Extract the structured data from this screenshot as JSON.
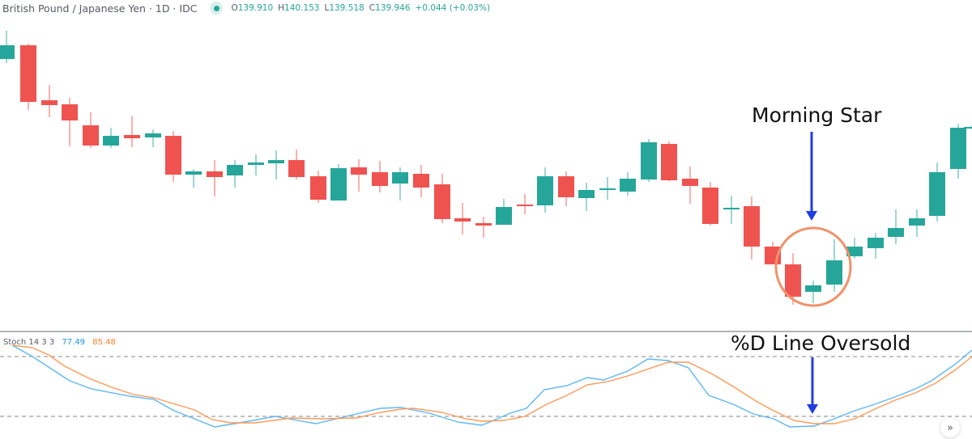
{
  "header": {
    "title": "British Pound / Japanese Yen · 1D · IDC",
    "status_icon": "market-open-dot",
    "ohlc": {
      "o_label": "O",
      "o": "139.910",
      "h_label": "H",
      "h": "140.153",
      "l_label": "L",
      "l": "139.518",
      "c_label": "C",
      "c": "139.946",
      "change": "+0.044 (+0.03%)"
    }
  },
  "indicator": {
    "name": "Stoch 14 3 3",
    "k_value": "77.49",
    "d_value": "85.48"
  },
  "annotations": {
    "morning_star": "Morning Star",
    "oversold": "%D Line Oversold"
  },
  "controls": {
    "scroll_to_realtime_icon": "»"
  },
  "colors": {
    "up": "#26a69a",
    "down": "#ef5350",
    "k_line": "#5eb7f5",
    "d_line": "#ff9a57",
    "arrow": "#1f3ee0",
    "circle": "#f0926a",
    "grid_dash": "#9e9e9e"
  },
  "chart_data": [
    {
      "type": "candlestick",
      "title": "British Pound / Japanese Yen · 1D · IDC",
      "note": "Candle values in screen-pixel units (y grows downward); no price axis visible",
      "candles": [
        {
          "x": 8,
          "open": 73,
          "close": 56,
          "high": 38,
          "low": 78,
          "dir": "up"
        },
        {
          "x": 35,
          "open": 56,
          "close": 126,
          "high": 54,
          "low": 136,
          "dir": "down"
        },
        {
          "x": 61,
          "open": 124,
          "close": 130,
          "high": 105,
          "low": 145,
          "dir": "down"
        },
        {
          "x": 86,
          "open": 129,
          "close": 149,
          "high": 121,
          "low": 181,
          "dir": "down"
        },
        {
          "x": 112,
          "open": 155,
          "close": 180,
          "high": 139,
          "low": 183,
          "dir": "down"
        },
        {
          "x": 137,
          "open": 180,
          "close": 168,
          "high": 158,
          "low": 183,
          "dir": "up"
        },
        {
          "x": 163,
          "open": 167,
          "close": 171,
          "high": 143,
          "low": 182,
          "dir": "down"
        },
        {
          "x": 189,
          "open": 170,
          "close": 165,
          "high": 160,
          "low": 182,
          "dir": "up"
        },
        {
          "x": 214,
          "open": 168,
          "close": 216,
          "high": 162,
          "low": 225,
          "dir": "down"
        },
        {
          "x": 239,
          "open": 216,
          "close": 212,
          "high": 209,
          "low": 232,
          "dir": "up"
        },
        {
          "x": 265,
          "open": 212,
          "close": 219,
          "high": 198,
          "low": 243,
          "dir": "down"
        },
        {
          "x": 290,
          "open": 217,
          "close": 204,
          "high": 198,
          "low": 232,
          "dir": "up"
        },
        {
          "x": 316,
          "open": 204,
          "close": 201,
          "high": 191,
          "low": 217,
          "dir": "up"
        },
        {
          "x": 341,
          "open": 202,
          "close": 198,
          "high": 186,
          "low": 222,
          "dir": "up"
        },
        {
          "x": 366,
          "open": 198,
          "close": 219,
          "high": 185,
          "low": 222,
          "dir": "down"
        },
        {
          "x": 393,
          "open": 218,
          "close": 247,
          "high": 211,
          "low": 251,
          "dir": "down"
        },
        {
          "x": 418,
          "open": 248,
          "close": 208,
          "high": 203,
          "low": 248,
          "dir": "up"
        },
        {
          "x": 443,
          "open": 207,
          "close": 216,
          "high": 197,
          "low": 237,
          "dir": "down"
        },
        {
          "x": 469,
          "open": 213,
          "close": 230,
          "high": 199,
          "low": 238,
          "dir": "down"
        },
        {
          "x": 494,
          "open": 227,
          "close": 213,
          "high": 207,
          "low": 248,
          "dir": "up"
        },
        {
          "x": 520,
          "open": 215,
          "close": 232,
          "high": 204,
          "low": 244,
          "dir": "down"
        },
        {
          "x": 546,
          "open": 228,
          "close": 271,
          "high": 215,
          "low": 276,
          "dir": "down"
        },
        {
          "x": 571,
          "open": 270,
          "close": 274,
          "high": 251,
          "low": 290,
          "dir": "down"
        },
        {
          "x": 597,
          "open": 276,
          "close": 279,
          "high": 268,
          "low": 294,
          "dir": "down"
        },
        {
          "x": 622,
          "open": 278,
          "close": 256,
          "high": 246,
          "low": 278,
          "dir": "up"
        },
        {
          "x": 648,
          "open": 253,
          "close": 254,
          "high": 240,
          "low": 265,
          "dir": "down"
        },
        {
          "x": 673,
          "open": 254,
          "close": 218,
          "high": 207,
          "low": 263,
          "dir": "up"
        },
        {
          "x": 699,
          "open": 218,
          "close": 244,
          "high": 212,
          "low": 255,
          "dir": "down"
        },
        {
          "x": 724,
          "open": 245,
          "close": 235,
          "high": 226,
          "low": 261,
          "dir": "up"
        },
        {
          "x": 750,
          "open": 235,
          "close": 233,
          "high": 219,
          "low": 247,
          "dir": "up"
        },
        {
          "x": 775,
          "open": 237,
          "close": 221,
          "high": 213,
          "low": 242,
          "dir": "up"
        },
        {
          "x": 801,
          "open": 222,
          "close": 176,
          "high": 172,
          "low": 225,
          "dir": "up"
        },
        {
          "x": 826,
          "open": 178,
          "close": 223,
          "high": 175,
          "low": 224,
          "dir": "down"
        },
        {
          "x": 852,
          "open": 221,
          "close": 230,
          "high": 206,
          "low": 252,
          "dir": "down"
        },
        {
          "x": 877,
          "open": 232,
          "close": 277,
          "high": 225,
          "low": 279,
          "dir": "down"
        },
        {
          "x": 903,
          "open": 257,
          "close": 257,
          "high": 242,
          "low": 277,
          "dir": "up"
        },
        {
          "x": 928,
          "open": 255,
          "close": 305,
          "high": 243,
          "low": 321,
          "dir": "down"
        },
        {
          "x": 954,
          "open": 305,
          "close": 327,
          "high": 299,
          "low": 327,
          "dir": "down"
        },
        {
          "x": 979,
          "open": 327,
          "close": 367,
          "high": 313,
          "low": 377,
          "dir": "down"
        },
        {
          "x": 1004,
          "open": 361,
          "close": 353,
          "high": 347,
          "low": 375,
          "dir": "up"
        },
        {
          "x": 1030,
          "open": 352,
          "close": 322,
          "high": 296,
          "low": 361,
          "dir": "up"
        },
        {
          "x": 1055,
          "open": 317,
          "close": 305,
          "high": 294,
          "low": 320,
          "dir": "up"
        },
        {
          "x": 1081,
          "open": 307,
          "close": 294,
          "high": 288,
          "low": 320,
          "dir": "up"
        },
        {
          "x": 1106,
          "open": 293,
          "close": 282,
          "high": 259,
          "low": 302,
          "dir": "up"
        },
        {
          "x": 1132,
          "open": 279,
          "close": 270,
          "high": 259,
          "low": 293,
          "dir": "up"
        },
        {
          "x": 1157,
          "open": 267,
          "close": 213,
          "high": 201,
          "low": 274,
          "dir": "up"
        },
        {
          "x": 1183,
          "open": 209,
          "close": 158,
          "high": 153,
          "low": 221,
          "dir": "up"
        },
        {
          "x": 1200,
          "open": 158,
          "close": 157,
          "high": 155,
          "low": 160,
          "dir": "up"
        }
      ],
      "highlight_circle": {
        "cx": 1004,
        "cy": 330,
        "rx": 46,
        "ry": 48
      },
      "arrow": {
        "x": 1002,
        "y1": 163,
        "y2": 273
      }
    },
    {
      "type": "line",
      "title": "Stoch 14 3 3",
      "series": [
        {
          "name": "%K",
          "value_label": "77.49",
          "points": [
            [
              15,
              427
            ],
            [
              40,
              441
            ],
            [
              86,
              471
            ],
            [
              113,
              481
            ],
            [
              160,
              490
            ],
            [
              190,
              494
            ],
            [
              215,
              508
            ],
            [
              265,
              528
            ],
            [
              290,
              524
            ],
            [
              340,
              515
            ],
            [
              390,
              524
            ],
            [
              440,
              512
            ],
            [
              470,
              505
            ],
            [
              495,
              504
            ],
            [
              530,
              511
            ],
            [
              565,
              522
            ],
            [
              595,
              526
            ],
            [
              630,
              511
            ],
            [
              650,
              505
            ],
            [
              672,
              482
            ],
            [
              700,
              477
            ],
            [
              725,
              467
            ],
            [
              745,
              470
            ],
            [
              775,
              459
            ],
            [
              800,
              444
            ],
            [
              825,
              446
            ],
            [
              850,
              455
            ],
            [
              875,
              489
            ],
            [
              905,
              500
            ],
            [
              930,
              512
            ],
            [
              955,
              518
            ],
            [
              975,
              528
            ],
            [
              1005,
              527
            ],
            [
              1030,
              518
            ],
            [
              1055,
              508
            ],
            [
              1080,
              500
            ],
            [
              1105,
              491
            ],
            [
              1130,
              481
            ],
            [
              1150,
              471
            ],
            [
              1180,
              450
            ],
            [
              1200,
              433
            ]
          ]
        },
        {
          "name": "%D",
          "value_label": "85.48",
          "points": [
            [
              15,
              427
            ],
            [
              40,
              430
            ],
            [
              60,
              439
            ],
            [
              80,
              453
            ],
            [
              110,
              468
            ],
            [
              138,
              479
            ],
            [
              165,
              488
            ],
            [
              190,
              492
            ],
            [
              240,
              507
            ],
            [
              262,
              519
            ],
            [
              285,
              523
            ],
            [
              315,
              523
            ],
            [
              360,
              517
            ],
            [
              395,
              518
            ],
            [
              440,
              517
            ],
            [
              465,
              511
            ],
            [
              495,
              506
            ],
            [
              510,
              505
            ],
            [
              545,
              510
            ],
            [
              575,
              518
            ],
            [
              595,
              521
            ],
            [
              622,
              520
            ],
            [
              648,
              515
            ],
            [
              675,
              500
            ],
            [
              700,
              489
            ],
            [
              725,
              476
            ],
            [
              750,
              472
            ],
            [
              775,
              465
            ],
            [
              825,
              448
            ],
            [
              850,
              448
            ],
            [
              880,
              463
            ],
            [
              905,
              478
            ],
            [
              933,
              496
            ],
            [
              955,
              508
            ],
            [
              980,
              520
            ],
            [
              1005,
              524
            ],
            [
              1030,
              524
            ],
            [
              1055,
              518
            ],
            [
              1080,
              506
            ],
            [
              1105,
              495
            ],
            [
              1130,
              486
            ],
            [
              1155,
              474
            ],
            [
              1180,
              457
            ],
            [
              1200,
              441
            ]
          ]
        }
      ],
      "levels": [
        {
          "name": "overbought",
          "y": 441
        },
        {
          "name": "oversold",
          "y": 515
        }
      ],
      "arrow": {
        "x": 1003,
        "y1": 442,
        "y2": 512
      }
    }
  ]
}
